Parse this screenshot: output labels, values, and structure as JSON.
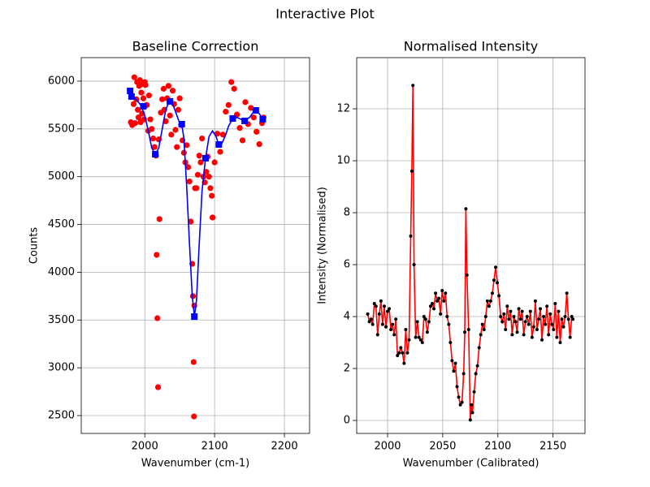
{
  "title": "Interactive Plot",
  "chart_data": [
    {
      "type": "scatter",
      "title": "Baseline Correction",
      "x_label": "Wavenumber (cm-1)",
      "y_label": "Counts",
      "xlim": [
        1909,
        2236
      ],
      "ylim": [
        2313,
        6246
      ],
      "xticks": [
        2000,
        2100,
        2200
      ],
      "yticks": [
        2500,
        3000,
        3500,
        4000,
        4500,
        5000,
        5500,
        6000
      ],
      "grid": true,
      "series": [
        {
          "type": "scatter",
          "marker": "circle",
          "color": "#ff0000",
          "x": [
            1980,
            1982,
            1984,
            1985,
            1986,
            1988,
            1989,
            1990,
            1991,
            1992,
            1993,
            1994,
            1995,
            1996,
            1997,
            1998,
            1999,
            2000,
            2001,
            2003,
            2005,
            2006,
            2008,
            2010,
            2012,
            2014,
            2016,
            2017,
            2018,
            2019,
            2020,
            2021,
            2023,
            2025,
            2027,
            2028,
            2030,
            2032,
            2034,
            2036,
            2038,
            2040,
            2042,
            2044,
            2046,
            2048,
            2050,
            2052,
            2054,
            2056,
            2058,
            2060,
            2062,
            2064,
            2066,
            2068,
            2069,
            2070,
            2070.5,
            2071,
            2072,
            2074,
            2076,
            2078,
            2080,
            2082,
            2084,
            2086,
            2088,
            2090,
            2092,
            2094,
            2096,
            2097,
            2100,
            2104,
            2108,
            2112,
            2116,
            2120,
            2124,
            2128,
            2132,
            2136,
            2140,
            2144,
            2148,
            2152,
            2156,
            2160,
            2164,
            2168,
            2170
          ],
          "values": [
            5570,
            5540,
            5760,
            6040,
            5560,
            5810,
            5990,
            5700,
            5620,
            5950,
            6010,
            5570,
            5880,
            5660,
            5970,
            5820,
            5600,
            5990,
            5960,
            5750,
            5480,
            5850,
            5600,
            5500,
            5400,
            5310,
            5220,
            4182,
            3519,
            2797,
            5390,
            4556,
            5670,
            5810,
            5920,
            5700,
            5580,
            5820,
            5950,
            5640,
            5440,
            5900,
            5760,
            5490,
            5310,
            5700,
            5820,
            5540,
            5380,
            5250,
            5150,
            5330,
            5100,
            4950,
            4530,
            4088,
            3750,
            3060,
            2491,
            3650,
            4880,
            4880,
            5020,
            5220,
            5150,
            5400,
            5000,
            4940,
            5050,
            5210,
            5000,
            4880,
            4800,
            4573,
            5150,
            5450,
            5260,
            5440,
            5680,
            5750,
            5990,
            5920,
            5650,
            5510,
            5380,
            5780,
            5550,
            5720,
            5620,
            5470,
            5340,
            5560,
            5620
          ]
        },
        {
          "type": "line",
          "color": "#0000ff",
          "x": [
            1978,
            1985,
            1990,
            1995,
            2000,
            2005,
            2010,
            2015,
            2020,
            2025,
            2030,
            2035,
            2040,
            2045,
            2050,
            2053,
            2056,
            2060,
            2064,
            2068,
            2071,
            2074,
            2078,
            2082,
            2087,
            2092,
            2097,
            2102,
            2106,
            2110,
            2116,
            2120,
            2126,
            2132,
            2138,
            2143,
            2150,
            2155,
            2159,
            2164,
            2169
          ],
          "values": [
            5900,
            5830,
            5790,
            5740,
            5640,
            5480,
            5300,
            5235,
            5300,
            5500,
            5700,
            5790,
            5760,
            5660,
            5560,
            5550,
            5400,
            4900,
            4300,
            3750,
            3536,
            3700,
            4300,
            4850,
            5193,
            5420,
            5480,
            5420,
            5337,
            5340,
            5440,
            5530,
            5609,
            5620,
            5600,
            5584,
            5620,
            5670,
            5694,
            5660,
            5601
          ]
        },
        {
          "type": "scatter",
          "marker": "square",
          "color": "#0000ff",
          "x": [
            1979,
            1981,
            1998,
            2015,
            2036,
            2053,
            2071,
            2087,
            2106,
            2126,
            2143,
            2159,
            2169
          ],
          "values": [
            5898,
            5839,
            5737,
            5235,
            5788,
            5550,
            3536,
            5193,
            5337,
            5609,
            5584,
            5694,
            5601
          ]
        }
      ]
    },
    {
      "type": "line",
      "title": "Normalised Intensity",
      "x_label": "Wavenumber (Calibrated)",
      "y_label": "Intensity (Normalised)",
      "xlim": [
        1972,
        2179
      ],
      "ylim": [
        -0.5,
        13.97
      ],
      "xticks": [
        2000,
        2050,
        2100,
        2150
      ],
      "yticks": [
        0,
        2,
        4,
        6,
        8,
        10,
        12
      ],
      "grid": true,
      "series": [
        {
          "type": "line",
          "color": "#ff0000",
          "marker": "circle",
          "marker_color": "#000000",
          "x": [
            1982,
            1983.5,
            1985,
            1986.5,
            1988,
            1989.5,
            1991,
            1992.5,
            1994,
            1995.5,
            1997,
            1998.5,
            2000,
            2001.5,
            2003,
            2004.5,
            2006,
            2007.5,
            2009,
            2010.5,
            2012,
            2013.5,
            2015,
            2016.5,
            2018,
            2019.5,
            2021,
            2022,
            2023,
            2024,
            2025.5,
            2027,
            2028.5,
            2030,
            2031.5,
            2033,
            2034.5,
            2036,
            2037.5,
            2039,
            2040.5,
            2042,
            2043.5,
            2045,
            2046.5,
            2048,
            2049.5,
            2051,
            2052.5,
            2054,
            2055.5,
            2057,
            2058.5,
            2060,
            2061.5,
            2063,
            2064.5,
            2066,
            2067.5,
            2069,
            2070,
            2071,
            2072,
            2073.5,
            2075,
            2076,
            2077,
            2078.5,
            2080,
            2081.5,
            2083,
            2084.5,
            2086,
            2087.5,
            2089,
            2090.5,
            2092,
            2093.5,
            2095,
            2096.5,
            2098,
            2099.5,
            2101,
            2102.5,
            2104,
            2105.5,
            2107,
            2108.5,
            2110,
            2111.5,
            2113,
            2114.5,
            2116,
            2117.5,
            2119,
            2120.5,
            2122,
            2123.5,
            2125,
            2126.5,
            2128,
            2129.5,
            2131,
            2132.5,
            2134,
            2135.5,
            2137,
            2138.5,
            2140,
            2141.5,
            2143,
            2144.5,
            2146,
            2147.5,
            2149,
            2150.5,
            2152,
            2153.5,
            2155,
            2156.5,
            2158,
            2159.5,
            2161,
            2162.5,
            2164,
            2165.5,
            2167,
            2168
          ],
          "values": [
            4.1,
            3.8,
            3.9,
            3.7,
            4.5,
            4.4,
            3.3,
            4.1,
            4.6,
            3.7,
            4.4,
            3.6,
            4.2,
            4.3,
            3.5,
            3.7,
            3.3,
            3.9,
            2.5,
            2.6,
            2.8,
            2.6,
            2.2,
            3.5,
            2.6,
            3.1,
            7.1,
            9.6,
            12.9,
            6.0,
            3.2,
            3.8,
            3.2,
            3.1,
            3.0,
            4.0,
            3.9,
            3.4,
            3.8,
            4.4,
            4.5,
            4.3,
            4.9,
            4.6,
            4.7,
            4.1,
            5.0,
            4.6,
            4.9,
            4.0,
            3.7,
            3.0,
            2.3,
            1.9,
            2.2,
            1.3,
            0.9,
            0.6,
            0.7,
            1.8,
            3.4,
            8.15,
            5.6,
            3.5,
            0.02,
            0.6,
            0.3,
            1.1,
            1.8,
            2.1,
            2.8,
            3.3,
            3.7,
            3.5,
            4.0,
            4.6,
            4.4,
            4.6,
            4.9,
            5.4,
            5.9,
            5.3,
            4.8,
            4.0,
            3.8,
            4.1,
            3.5,
            4.4,
            3.9,
            4.2,
            3.3,
            4.0,
            3.8,
            3.4,
            4.3,
            3.9,
            4.2,
            3.3,
            3.8,
            4.0,
            3.7,
            4.2,
            3.2,
            3.6,
            4.6,
            3.5,
            3.9,
            4.3,
            3.1,
            4.0,
            3.7,
            4.4,
            3.3,
            4.1,
            3.7,
            3.5,
            4.5,
            3.2,
            4.2,
            3.0,
            3.9,
            3.6,
            4.0,
            4.9,
            3.9,
            3.2,
            4.0,
            3.9
          ]
        }
      ]
    }
  ]
}
